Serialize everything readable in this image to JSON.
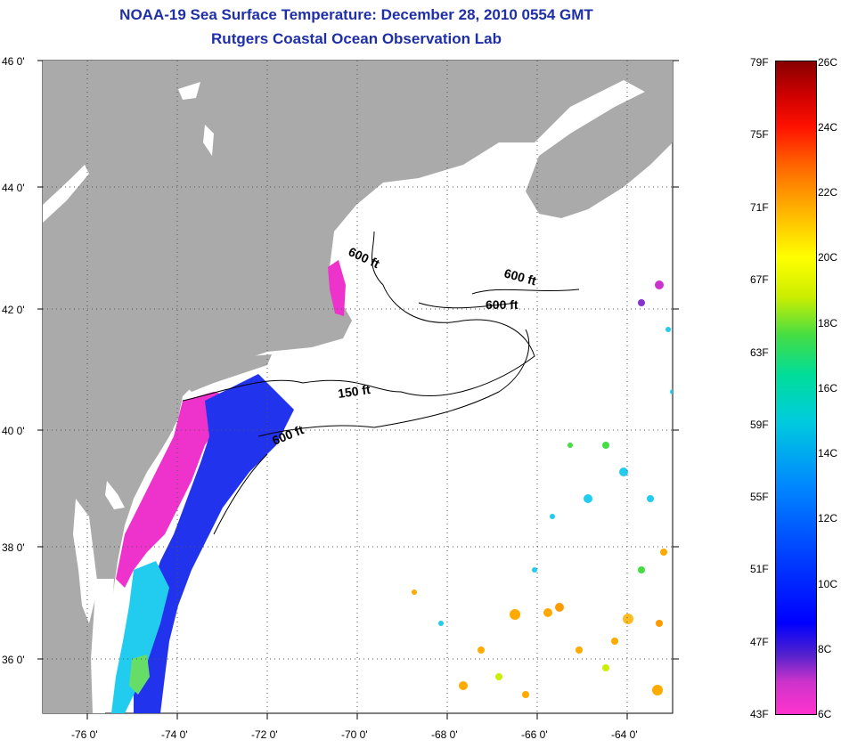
{
  "title": {
    "line1": "NOAA-19 Sea Surface Temperature:  December 28, 2010 0554 GMT",
    "line2": "Rutgers Coastal Ocean Observation Lab"
  },
  "map": {
    "lat_ticks": [
      {
        "label": "46 0'"
      },
      {
        "label": "44 0'"
      },
      {
        "label": "42 0'"
      },
      {
        "label": "40 0'"
      },
      {
        "label": "38 0'"
      },
      {
        "label": "36 0'"
      }
    ],
    "lon_ticks": [
      {
        "label": "-76 0'"
      },
      {
        "label": "-74 0'"
      },
      {
        "label": "-72 0'"
      },
      {
        "label": "-70 0'"
      },
      {
        "label": "-68 0'"
      },
      {
        "label": "-66 0'"
      },
      {
        "label": "-64 0'"
      }
    ],
    "contour_labels": [
      "600 ft",
      "600 ft",
      "600 ft",
      "150 ft",
      "600 ft"
    ],
    "colors": {
      "land": "#aaaaaa",
      "ocean": "#ffffff",
      "grid": "#555555"
    }
  },
  "colorbar": {
    "fahrenheit": [
      "79F",
      "75F",
      "71F",
      "67F",
      "63F",
      "59F",
      "55F",
      "51F",
      "47F",
      "43F"
    ],
    "celsius": [
      "26C",
      "24C",
      "22C",
      "20C",
      "18C",
      "16C",
      "14C",
      "12C",
      "10C",
      "8C",
      "6C"
    ]
  }
}
